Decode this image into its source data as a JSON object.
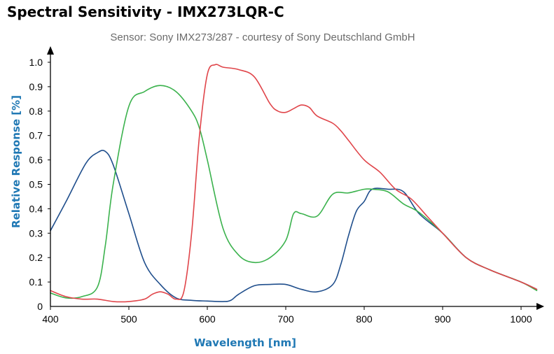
{
  "chart_data": {
    "type": "line",
    "title": "Spectral Sensitivity - IMX273LQR-C",
    "subtitle": "Sensor: Sony IMX273/287 - courtesy of Sony Deutschland GmbH",
    "xlabel": "Wavelength [nm]",
    "ylabel": "Relative Response [%]",
    "xlim": [
      400,
      1020
    ],
    "ylim": [
      0,
      1.0
    ],
    "xticks": [
      400,
      500,
      600,
      700,
      800,
      900,
      1000
    ],
    "yticks": [
      0,
      0.1,
      0.2,
      0.3,
      0.4,
      0.5,
      0.6,
      0.7,
      0.8,
      0.9,
      1.0
    ],
    "ytick_labels": [
      "0",
      "0.1",
      "0.2",
      "0.3",
      "0.4",
      "0.5",
      "0.6",
      "0.7",
      "0.8",
      "0.9",
      "1.0"
    ],
    "grid": false,
    "legend": "none",
    "series": [
      {
        "color": "#1f4e8c",
        "x": [
          400,
          420,
          445,
          460,
          470,
          480,
          500,
          520,
          540,
          560,
          580,
          600,
          620,
          630,
          640,
          660,
          680,
          700,
          720,
          740,
          760,
          770,
          780,
          790,
          800,
          810,
          830,
          850,
          870,
          900,
          930,
          960,
          1000,
          1020
        ],
        "y": [
          0.31,
          0.43,
          0.585,
          0.63,
          0.635,
          0.58,
          0.38,
          0.18,
          0.09,
          0.035,
          0.025,
          0.022,
          0.02,
          0.025,
          0.05,
          0.085,
          0.09,
          0.09,
          0.07,
          0.06,
          0.09,
          0.17,
          0.29,
          0.39,
          0.43,
          0.48,
          0.48,
          0.47,
          0.38,
          0.3,
          0.2,
          0.15,
          0.1,
          0.07
        ]
      },
      {
        "color": "#3bb24d",
        "x": [
          400,
          420,
          440,
          460,
          470,
          480,
          500,
          520,
          540,
          560,
          580,
          590,
          600,
          620,
          640,
          660,
          680,
          700,
          710,
          720,
          740,
          760,
          780,
          800,
          810,
          830,
          850,
          870,
          900,
          930,
          960,
          1000,
          1020
        ],
        "y": [
          0.055,
          0.035,
          0.04,
          0.08,
          0.25,
          0.5,
          0.82,
          0.88,
          0.905,
          0.88,
          0.8,
          0.73,
          0.6,
          0.32,
          0.21,
          0.18,
          0.2,
          0.27,
          0.38,
          0.38,
          0.37,
          0.46,
          0.465,
          0.48,
          0.48,
          0.47,
          0.42,
          0.385,
          0.3,
          0.2,
          0.15,
          0.1,
          0.065
        ]
      },
      {
        "color": "#e0454a",
        "x": [
          400,
          420,
          440,
          460,
          480,
          500,
          520,
          530,
          540,
          550,
          560,
          570,
          580,
          590,
          600,
          610,
          620,
          640,
          660,
          680,
          690,
          700,
          710,
          720,
          730,
          740,
          760,
          770,
          780,
          800,
          820,
          840,
          860,
          880,
          900,
          930,
          960,
          1000,
          1020
        ],
        "y": [
          0.065,
          0.04,
          0.03,
          0.03,
          0.02,
          0.02,
          0.03,
          0.05,
          0.06,
          0.05,
          0.03,
          0.06,
          0.3,
          0.7,
          0.95,
          0.99,
          0.98,
          0.97,
          0.94,
          0.83,
          0.8,
          0.795,
          0.81,
          0.825,
          0.815,
          0.78,
          0.75,
          0.72,
          0.68,
          0.6,
          0.55,
          0.48,
          0.44,
          0.37,
          0.3,
          0.2,
          0.15,
          0.1,
          0.07
        ]
      }
    ]
  }
}
